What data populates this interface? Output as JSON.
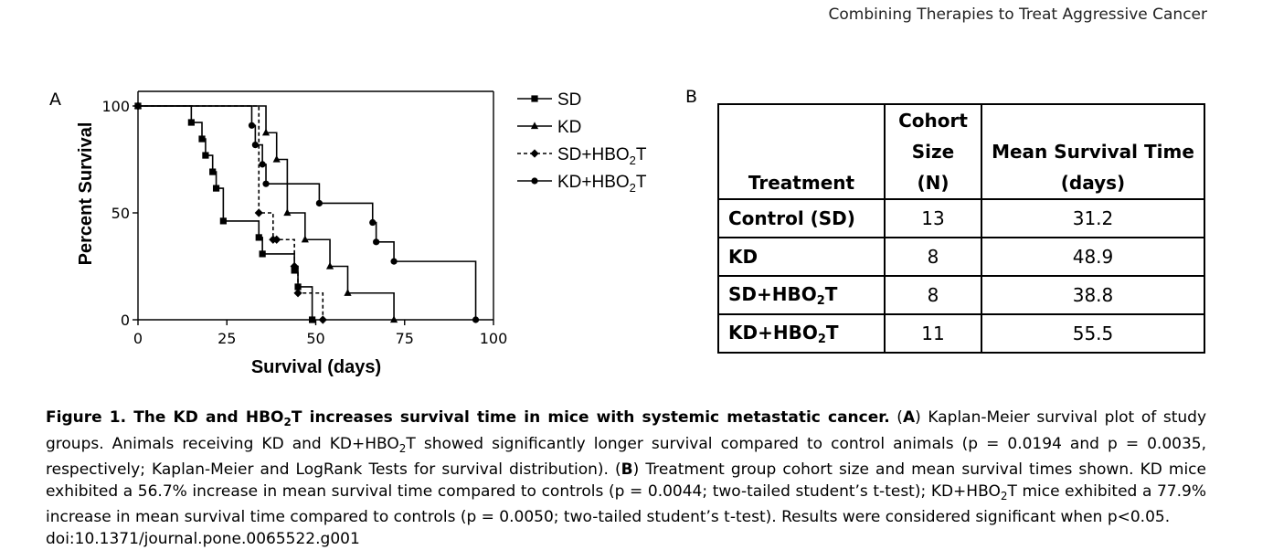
{
  "running_header": "Combining Therapies to Treat Aggressive Cancer",
  "panel_a_label": "A",
  "panel_b_label": "B",
  "chart_data": {
    "type": "kaplan-meier step line",
    "xlabel": "Survival (days)",
    "ylabel": "Percent Survival",
    "xlim": [
      0,
      100
    ],
    "ylim": [
      0,
      100
    ],
    "xticks": [
      "0",
      "25",
      "50",
      "75",
      "100"
    ],
    "yticks": [
      "0",
      "50",
      "100"
    ],
    "legend_position": "top-right",
    "series": [
      {
        "name": "SD",
        "style": "solid",
        "marker": "square",
        "points": [
          [
            0,
            100
          ],
          [
            15,
            92.3
          ],
          [
            18,
            84.6
          ],
          [
            19,
            76.9
          ],
          [
            21,
            69.2
          ],
          [
            22,
            61.5
          ],
          [
            24,
            46.2
          ],
          [
            34,
            38.5
          ],
          [
            35,
            30.8
          ],
          [
            44,
            23.1
          ],
          [
            45,
            15.4
          ],
          [
            49,
            0
          ]
        ]
      },
      {
        "name": "KD",
        "style": "solid",
        "marker": "triangle",
        "points": [
          [
            0,
            100
          ],
          [
            36,
            87.5
          ],
          [
            39,
            75
          ],
          [
            42,
            50
          ],
          [
            47,
            37.5
          ],
          [
            54,
            25
          ],
          [
            59,
            12.5
          ],
          [
            72,
            0
          ]
        ]
      },
      {
        "name": "SD+HBO2T",
        "style": "dashed",
        "marker": "diamond",
        "points": [
          [
            0,
            100
          ],
          [
            34,
            50
          ],
          [
            38,
            37.5
          ],
          [
            39,
            37.5
          ],
          [
            44,
            25
          ],
          [
            45,
            12.5
          ],
          [
            52,
            0
          ]
        ]
      },
      {
        "name": "KD+HBO2T",
        "style": "solid",
        "marker": "circle",
        "points": [
          [
            0,
            100
          ],
          [
            32,
            90.9
          ],
          [
            33,
            81.8
          ],
          [
            35,
            72.7
          ],
          [
            36,
            63.6
          ],
          [
            51,
            54.5
          ],
          [
            66,
            45.5
          ],
          [
            67,
            36.4
          ],
          [
            72,
            27.3
          ],
          [
            95,
            0
          ]
        ]
      }
    ]
  },
  "legend": {
    "sd": "SD",
    "kd": "KD",
    "sd_hbo": "SD+HBO",
    "kd_hbo": "KD+HBO",
    "sub2": "2",
    "t": "T"
  },
  "table": {
    "header_treatment": "Treatment",
    "header_cohort_1": "Cohort",
    "header_cohort_2": "Size (N)",
    "header_mean_1": "Mean Survival Time",
    "header_mean_2": "(days)",
    "rows": [
      {
        "name": "Control (SD)",
        "n": "13",
        "mean": "31.2"
      },
      {
        "name": "KD",
        "n": "8",
        "mean": "48.9"
      },
      {
        "name_pre": "SD+HBO",
        "name_sub": "2",
        "name_post": "T",
        "n": "8",
        "mean": "38.8"
      },
      {
        "name_pre": "KD+HBO",
        "name_sub": "2",
        "name_post": "T",
        "n": "11",
        "mean": "55.5"
      }
    ]
  },
  "caption": {
    "title_pre": "Figure 1. The KD and HBO",
    "title_sub": "2",
    "title_post": "T increases survival time in mice with systemic metastatic cancer.",
    "line1_rest": " (",
    "a": "A",
    "line1_end": ") Kaplan-Meier survival plot of study",
    "line2": "groups. Animals receiving KD and KD+HBO",
    "line2_sub": "2",
    "line2_end": "T showed significantly longer survival compared to control animals (p = 0.0194 and p = 0.0035,",
    "line3_pre": "respectively; Kaplan-Meier and LogRank Tests for survival distribution). (",
    "b": "B",
    "line3_end": ") Treatment group cohort size and mean survival times shown. KD mice",
    "line4_pre": "exhibited a 56.7% increase in mean survival time compared to controls (p = 0.0044; two-tailed student’s t-test); KD+HBO",
    "line4_sub": "2",
    "line4_end": "T mice exhibited a 77.9%",
    "line5": "increase in mean survival time compared to controls (p = 0.0050; two-tailed student’s t-test). Results were considered significant when p<0.05.",
    "doi": "doi:10.1371/journal.pone.0065522.g001"
  }
}
